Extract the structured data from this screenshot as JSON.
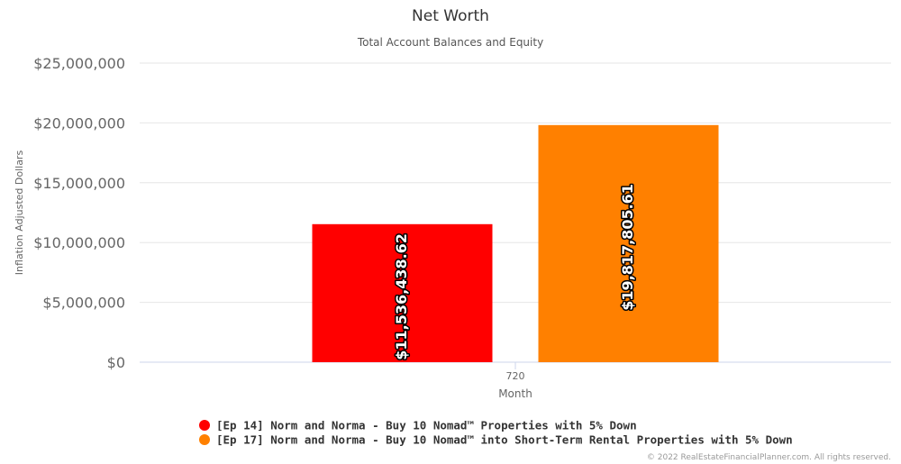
{
  "chart_data": {
    "type": "bar",
    "title": "Net Worth",
    "subtitle": "Total Account Balances and Equity",
    "xlabel": "Month",
    "ylabel": "Inflation Adjusted Dollars",
    "categories": [
      "720"
    ],
    "ylim": [
      0,
      25000000
    ],
    "yticks": [
      0,
      5000000,
      10000000,
      15000000,
      20000000,
      25000000
    ],
    "ytick_labels": [
      "$0",
      "$5,000,000",
      "$10,000,000",
      "$15,000,000",
      "$20,000,000",
      "$25,000,000"
    ],
    "grid": true,
    "legend_position": "bottom",
    "series": [
      {
        "name": "[Ep 14] Norm and Norma - Buy 10 Nomad™ Properties with 5% Down",
        "values": [
          11536438.62
        ],
        "label": "$11,536,438.62",
        "color": "#ff0000"
      },
      {
        "name": "[Ep 17] Norm and Norma - Buy 10 Nomad™ into Short-Term Rental Properties with 5% Down",
        "values": [
          19817805.61
        ],
        "label": "$19,817,805.61",
        "color": "#ff8000"
      }
    ]
  },
  "credits": "© 2022 RealEstateFinancialPlanner.com. All rights reserved.",
  "colors": {
    "grid": "#e6e6e6",
    "axis_line": "#ccd6eb"
  }
}
